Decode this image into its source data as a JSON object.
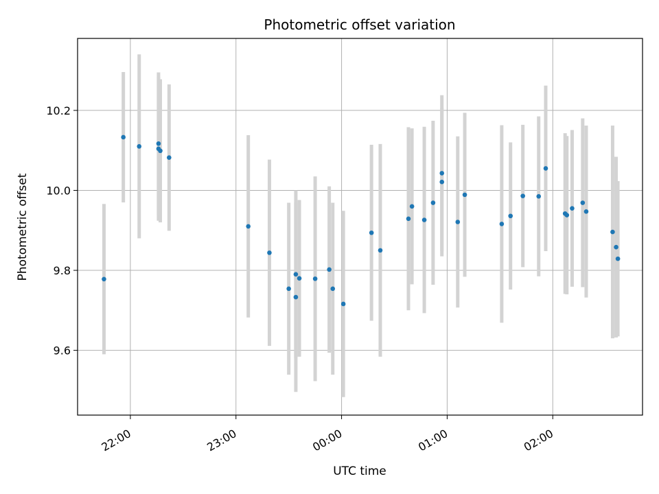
{
  "chart_data": {
    "type": "scatter",
    "title": "Photometric offset variation",
    "xlabel": "UTC time",
    "ylabel": "Photometric offset",
    "grid": true,
    "x_ticks": [
      "22:00",
      "23:00",
      "00:00",
      "01:00",
      "02:00"
    ],
    "x_tick_times": [
      "22:00",
      "23:00",
      "00:00",
      "01:00",
      "02:00"
    ],
    "xlim": [
      "21:30",
      "02:51"
    ],
    "ylim": [
      9.438,
      10.38
    ],
    "y_ticks": [
      9.6,
      9.8,
      10.0,
      10.2
    ],
    "y_tick_labels": [
      "9.6",
      "9.8",
      "10.0",
      "10.2"
    ],
    "colors": {
      "point": "#1f77b4",
      "errorbar": "#d3d3d3",
      "grid": "#b0b0b0"
    },
    "series": [
      {
        "points": [
          {
            "x": "21:45",
            "y": 9.778,
            "err": 0.188
          },
          {
            "x": "21:56",
            "y": 10.133,
            "err": 0.163
          },
          {
            "x": "22:05",
            "y": 10.11,
            "err": 0.23
          },
          {
            "x": "22:16",
            "y": 10.104,
            "err": 0.18
          },
          {
            "x": "22:16",
            "y": 10.117,
            "err": 0.178
          },
          {
            "x": "22:17",
            "y": 10.099,
            "err": 0.179
          },
          {
            "x": "22:22",
            "y": 10.082,
            "err": 0.183
          },
          {
            "x": "23:07",
            "y": 9.91,
            "err": 0.228
          },
          {
            "x": "23:19",
            "y": 9.844,
            "err": 0.233
          },
          {
            "x": "23:30",
            "y": 9.754,
            "err": 0.215
          },
          {
            "x": "23:34",
            "y": 9.79,
            "err": 0.21
          },
          {
            "x": "23:34",
            "y": 9.733,
            "err": 0.237
          },
          {
            "x": "23:36",
            "y": 9.78,
            "err": 0.196
          },
          {
            "x": "23:45",
            "y": 9.779,
            "err": 0.256
          },
          {
            "x": "23:53",
            "y": 9.802,
            "err": 0.208
          },
          {
            "x": "23:55",
            "y": 9.754,
            "err": 0.215
          },
          {
            "x": "00:01",
            "y": 9.716,
            "err": 0.233
          },
          {
            "x": "00:17",
            "y": 9.894,
            "err": 0.22
          },
          {
            "x": "00:22",
            "y": 9.85,
            "err": 0.266
          },
          {
            "x": "00:38",
            "y": 9.929,
            "err": 0.229
          },
          {
            "x": "00:40",
            "y": 9.96,
            "err": 0.195
          },
          {
            "x": "00:47",
            "y": 9.926,
            "err": 0.233
          },
          {
            "x": "00:52",
            "y": 9.969,
            "err": 0.205
          },
          {
            "x": "00:57",
            "y": 10.021,
            "err": 0.186
          },
          {
            "x": "00:57",
            "y": 10.043,
            "err": 0.195
          },
          {
            "x": "01:06",
            "y": 9.921,
            "err": 0.214
          },
          {
            "x": "01:10",
            "y": 9.989,
            "err": 0.205
          },
          {
            "x": "01:31",
            "y": 9.916,
            "err": 0.247
          },
          {
            "x": "01:36",
            "y": 9.936,
            "err": 0.184
          },
          {
            "x": "01:43",
            "y": 9.986,
            "err": 0.178
          },
          {
            "x": "01:52",
            "y": 9.985,
            "err": 0.2
          },
          {
            "x": "01:56",
            "y": 10.055,
            "err": 0.207
          },
          {
            "x": "02:07",
            "y": 9.942,
            "err": 0.201
          },
          {
            "x": "02:08",
            "y": 9.938,
            "err": 0.198
          },
          {
            "x": "02:11",
            "y": 9.955,
            "err": 0.196
          },
          {
            "x": "02:17",
            "y": 9.969,
            "err": 0.211
          },
          {
            "x": "02:19",
            "y": 9.947,
            "err": 0.215
          },
          {
            "x": "02:34",
            "y": 9.896,
            "err": 0.266
          },
          {
            "x": "02:36",
            "y": 9.858,
            "err": 0.226
          },
          {
            "x": "02:37",
            "y": 9.829,
            "err": 0.194
          }
        ]
      }
    ]
  }
}
